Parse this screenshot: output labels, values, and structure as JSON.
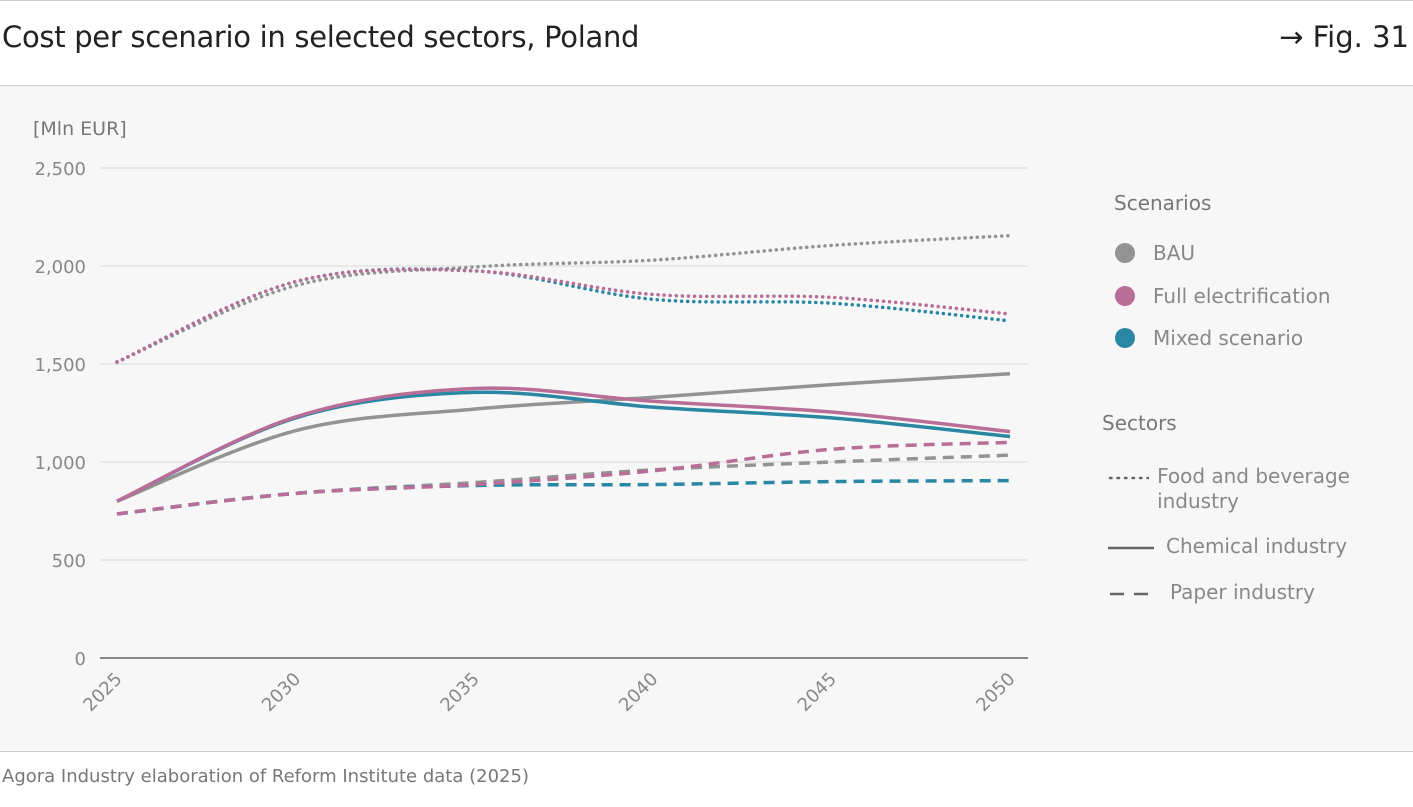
{
  "header": {
    "title": "Cost per scenario in selected sectors, Poland",
    "fig_ref": "→ Fig. 31"
  },
  "source": "Agora Industry elaboration of Reform Institute data (2025)",
  "colors": {
    "BAU": "#939393",
    "Full electrification": "#b86e96",
    "Mixed scenario": "#2a87a3"
  },
  "chart_data": {
    "type": "line",
    "ylabel": "[Mln EUR]",
    "ylim": [
      0,
      2500
    ],
    "yticks": [
      0,
      500,
      1000,
      1500,
      2000,
      2500
    ],
    "ytick_labels": [
      "0",
      "500",
      "1,000",
      "1,500",
      "2,000",
      "2,500"
    ],
    "x": [
      2025,
      2030,
      2035,
      2040,
      2045,
      2050
    ],
    "xtick_labels": [
      "2025",
      "2030",
      "2035",
      "2040",
      "2045",
      "2050"
    ],
    "grid": true,
    "legend_position": "right",
    "legend": {
      "scenarios_title": "Scenarios",
      "scenarios": [
        "BAU",
        "Full electrification",
        "Mixed scenario"
      ],
      "sectors_title": "Sectors",
      "sectors": [
        {
          "label": "Food and beverage industry",
          "style": "dotted"
        },
        {
          "label": "Chemical industry",
          "style": "solid"
        },
        {
          "label": "Paper industry",
          "style": "dashed"
        }
      ]
    },
    "series": [
      {
        "scenario": "BAU",
        "sector": "Food and beverage industry",
        "values": [
          1510,
          1900,
          1995,
          2030,
          2105,
          2155
        ]
      },
      {
        "scenario": "Mixed scenario",
        "sector": "Food and beverage industry",
        "values": [
          1510,
          1920,
          1975,
          1830,
          1810,
          1720
        ]
      },
      {
        "scenario": "Full electrification",
        "sector": "Food and beverage industry",
        "values": [
          1510,
          1920,
          1975,
          1855,
          1840,
          1755
        ]
      },
      {
        "scenario": "BAU",
        "sector": "Chemical industry",
        "values": [
          800,
          1160,
          1270,
          1330,
          1395,
          1450
        ]
      },
      {
        "scenario": "Mixed scenario",
        "sector": "Chemical industry",
        "values": [
          800,
          1225,
          1355,
          1280,
          1225,
          1130
        ]
      },
      {
        "scenario": "Full electrification",
        "sector": "Chemical industry",
        "values": [
          800,
          1230,
          1375,
          1310,
          1255,
          1155
        ]
      },
      {
        "scenario": "BAU",
        "sector": "Paper industry",
        "values": [
          735,
          840,
          895,
          960,
          1000,
          1035
        ]
      },
      {
        "scenario": "Mixed scenario",
        "sector": "Paper industry",
        "values": [
          735,
          840,
          880,
          885,
          900,
          905
        ]
      },
      {
        "scenario": "Full electrification",
        "sector": "Paper industry",
        "values": [
          735,
          840,
          885,
          955,
          1065,
          1100
        ]
      }
    ]
  }
}
